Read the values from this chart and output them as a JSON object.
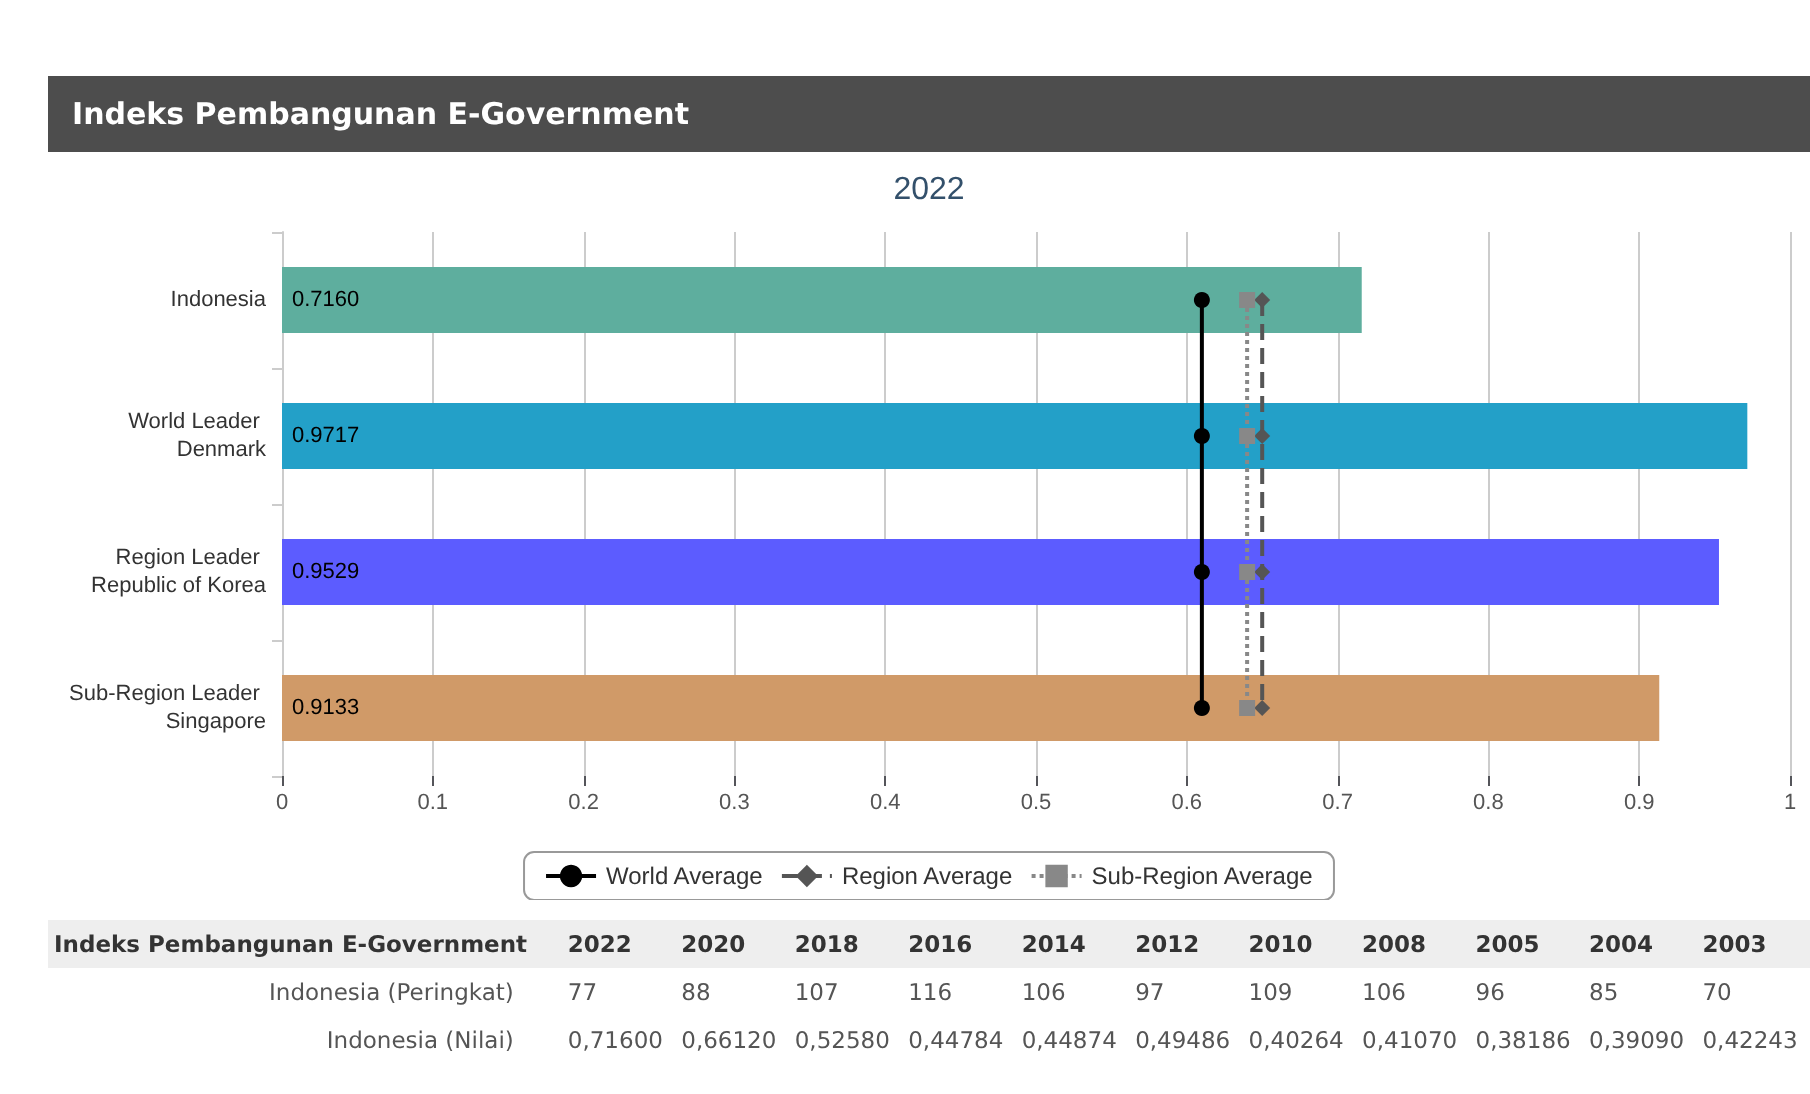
{
  "chart_data": [
    {
      "type": "bar",
      "orientation": "horizontal",
      "title": "Indeks Pembangunan E-Government",
      "subtitle": "2022",
      "categories": [
        "Indonesia",
        "World Leader Denmark",
        "Region Leader Republic of Korea",
        "Sub-Region Leader Singapore"
      ],
      "values": [
        0.716,
        0.9717,
        0.9529,
        0.9133
      ],
      "value_labels": [
        "0.7160",
        "0.9717",
        "0.9529",
        "0.9133"
      ],
      "colors": [
        "#5eae9e",
        "#23a0c8",
        "#5c5cff",
        "#d09a68"
      ],
      "series": [
        {
          "name": "World Average",
          "type": "line",
          "color": "#000000",
          "values": [
            0.61,
            0.61,
            0.61,
            0.61
          ],
          "marker": "circle",
          "line_style": "solid"
        },
        {
          "name": "Region Average",
          "type": "line",
          "color": "#555555",
          "values": [
            0.65,
            0.65,
            0.65,
            0.65
          ],
          "marker": "diamond",
          "line_style": "dashed"
        },
        {
          "name": "Sub-Region Average",
          "type": "line",
          "color": "#888888",
          "values": [
            0.64,
            0.64,
            0.64,
            0.64
          ],
          "marker": "square",
          "line_style": "dotted"
        }
      ],
      "xlim": [
        0,
        1
      ],
      "xticks": [
        0,
        0.1,
        0.2,
        0.3,
        0.4,
        0.5,
        0.6,
        0.7,
        0.8,
        0.9,
        1
      ],
      "grid": "x",
      "legend": "bottom"
    },
    {
      "type": "heatmap",
      "title": "Indeks Pembangunan E-Government",
      "categories": [
        "2022",
        "2020",
        "2018",
        "2016",
        "2014",
        "2012",
        "2010",
        "2008",
        "2005",
        "2004",
        "2003"
      ],
      "y_categories": [
        "Indonesia (Peringkat)",
        "Indonesia (Nilai)"
      ],
      "cells": [
        [
          77,
          88,
          107,
          116,
          106,
          97,
          109,
          106,
          96,
          85,
          70
        ],
        [
          0.716,
          0.6612,
          0.5258,
          0.44784,
          0.44874,
          0.49486,
          0.40264,
          0.4107,
          0.38186,
          0.3909,
          0.42243
        ]
      ],
      "cell_labels": [
        [
          "77",
          "88",
          "107",
          "116",
          "106",
          "97",
          "109",
          "106",
          "96",
          "85",
          "70"
        ],
        [
          "0,71600",
          "0,66120",
          "0,52580",
          "0,44784",
          "0,44874",
          "0,49486",
          "0,40264",
          "0,41070",
          "0,38186",
          "0,39090",
          "0,42243"
        ]
      ]
    }
  ]
}
